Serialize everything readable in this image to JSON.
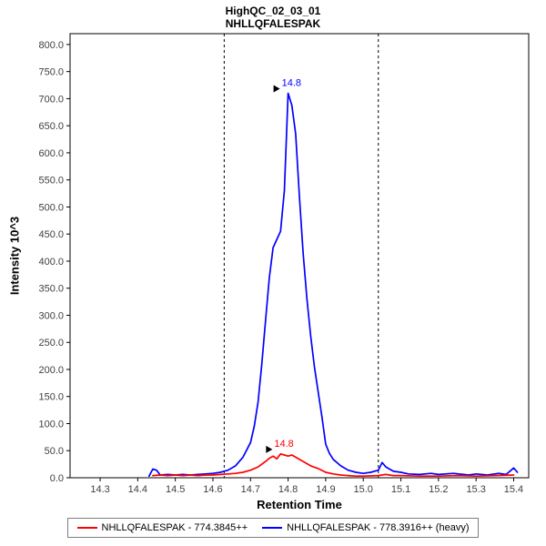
{
  "chart_data": {
    "type": "line",
    "title": "HighQC_02_03_01",
    "subtitle": "NHLLQFALESPAK",
    "xlabel": "Retention Time",
    "ylabel": "Intensity 10^3",
    "xlim": [
      14.22,
      15.44
    ],
    "ylim": [
      0,
      820
    ],
    "xticks": [
      14.3,
      14.4,
      14.5,
      14.6,
      14.7,
      14.8,
      14.9,
      15.0,
      15.1,
      15.2,
      15.3,
      15.4
    ],
    "yticks": [
      0,
      50,
      100,
      150,
      200,
      250,
      300,
      350,
      400,
      450,
      500,
      550,
      600,
      650,
      700,
      750,
      800
    ],
    "grid": false,
    "legend_position": "bottom-center",
    "integration_boundaries": [
      14.63,
      15.04
    ],
    "series": [
      {
        "name": "NHLLQFALESPAK - 774.3845++",
        "color": "#ff0000",
        "peak_retention_time": "14.8",
        "points": [
          [
            14.44,
            4
          ],
          [
            14.46,
            5
          ],
          [
            14.48,
            4
          ],
          [
            14.5,
            5
          ],
          [
            14.52,
            4
          ],
          [
            14.54,
            5
          ],
          [
            14.56,
            4
          ],
          [
            14.58,
            5
          ],
          [
            14.6,
            5
          ],
          [
            14.62,
            6
          ],
          [
            14.64,
            7
          ],
          [
            14.66,
            8
          ],
          [
            14.68,
            10
          ],
          [
            14.7,
            14
          ],
          [
            14.72,
            20
          ],
          [
            14.74,
            30
          ],
          [
            14.75,
            36
          ],
          [
            14.76,
            40
          ],
          [
            14.77,
            35
          ],
          [
            14.78,
            44
          ],
          [
            14.79,
            42
          ],
          [
            14.8,
            40
          ],
          [
            14.81,
            42
          ],
          [
            14.82,
            38
          ],
          [
            14.84,
            30
          ],
          [
            14.86,
            22
          ],
          [
            14.88,
            17
          ],
          [
            14.9,
            10
          ],
          [
            14.92,
            7
          ],
          [
            14.94,
            5
          ],
          [
            14.96,
            4
          ],
          [
            14.98,
            3
          ],
          [
            15.0,
            3
          ],
          [
            15.04,
            4
          ],
          [
            15.06,
            6
          ],
          [
            15.08,
            4
          ],
          [
            15.1,
            4
          ],
          [
            15.15,
            3
          ],
          [
            15.2,
            3
          ],
          [
            15.25,
            4
          ],
          [
            15.3,
            3
          ],
          [
            15.35,
            4
          ],
          [
            15.4,
            5
          ]
        ]
      },
      {
        "name": "NHLLQFALESPAK - 778.3916++ (heavy)",
        "color": "#0000ff",
        "peak_retention_time": "14.8",
        "points": [
          [
            14.43,
            3
          ],
          [
            14.44,
            16
          ],
          [
            14.45,
            14
          ],
          [
            14.46,
            5
          ],
          [
            14.48,
            6
          ],
          [
            14.5,
            5
          ],
          [
            14.52,
            6
          ],
          [
            14.54,
            5
          ],
          [
            14.56,
            6
          ],
          [
            14.58,
            7
          ],
          [
            14.6,
            8
          ],
          [
            14.62,
            10
          ],
          [
            14.64,
            14
          ],
          [
            14.66,
            22
          ],
          [
            14.68,
            38
          ],
          [
            14.7,
            65
          ],
          [
            14.71,
            95
          ],
          [
            14.72,
            140
          ],
          [
            14.73,
            210
          ],
          [
            14.74,
            290
          ],
          [
            14.75,
            370
          ],
          [
            14.76,
            425
          ],
          [
            14.77,
            440
          ],
          [
            14.78,
            455
          ],
          [
            14.79,
            530
          ],
          [
            14.8,
            710
          ],
          [
            14.81,
            688
          ],
          [
            14.82,
            635
          ],
          [
            14.83,
            520
          ],
          [
            14.84,
            415
          ],
          [
            14.85,
            330
          ],
          [
            14.86,
            262
          ],
          [
            14.87,
            205
          ],
          [
            14.88,
            158
          ],
          [
            14.89,
            112
          ],
          [
            14.9,
            62
          ],
          [
            14.91,
            45
          ],
          [
            14.92,
            34
          ],
          [
            14.94,
            22
          ],
          [
            14.96,
            14
          ],
          [
            14.98,
            10
          ],
          [
            15.0,
            8
          ],
          [
            15.02,
            10
          ],
          [
            15.04,
            14
          ],
          [
            15.05,
            28
          ],
          [
            15.06,
            20
          ],
          [
            15.08,
            12
          ],
          [
            15.1,
            10
          ],
          [
            15.12,
            7
          ],
          [
            15.15,
            6
          ],
          [
            15.18,
            8
          ],
          [
            15.2,
            6
          ],
          [
            15.24,
            8
          ],
          [
            15.28,
            5
          ],
          [
            15.3,
            7
          ],
          [
            15.33,
            5
          ],
          [
            15.36,
            8
          ],
          [
            15.38,
            6
          ],
          [
            15.4,
            18
          ],
          [
            15.41,
            10
          ]
        ]
      }
    ],
    "annotations": [
      {
        "text": "14.8",
        "x": 14.78,
        "y": 44,
        "color": "#ff0000"
      },
      {
        "text": "14.8",
        "x": 14.8,
        "y": 710,
        "color": "#0000ff"
      }
    ]
  }
}
